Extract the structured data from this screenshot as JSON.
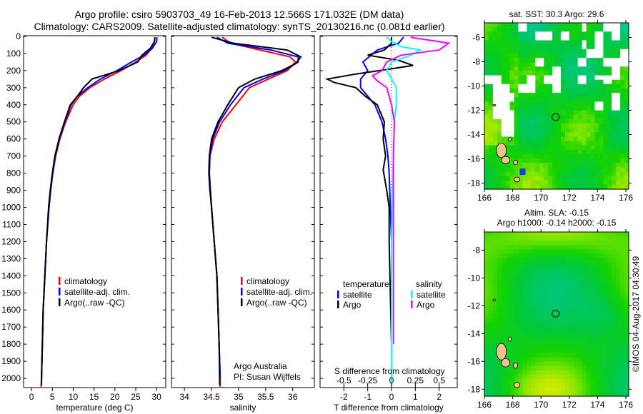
{
  "header": {
    "line1": "Argo profile: csiro 5903703_49 16-Feb-2013 12.566S 171.032E (DM data)",
    "line2": "Climatology: CARS2009. Satellite-adjusted climatology: synTS_20130216.nc (0.081d earlier)"
  },
  "colors": {
    "climatology": "#ff0000",
    "satellite": "#0000ff",
    "argo": "#000000",
    "sal_satellite": "#00ffff",
    "sal_argo": "#ff00ff"
  },
  "chart_data": [
    {
      "type": "line",
      "id": "temperature",
      "xlabel": "temperature (deg C)",
      "ylabel": "",
      "xlim": [
        -1.9,
        32.2
      ],
      "ylim": [
        -4,
        2054
      ],
      "y_inverted": true,
      "xticks": [
        0,
        5,
        10,
        15,
        20,
        25,
        30
      ],
      "xticklabels": [
        "0",
        "5",
        "10",
        "15",
        "20",
        "25",
        "30"
      ],
      "yticks": [
        0,
        100,
        200,
        300,
        400,
        500,
        600,
        700,
        800,
        900,
        1000,
        1100,
        1200,
        1300,
        1400,
        1500,
        1600,
        1700,
        1800,
        1900,
        2000
      ],
      "yticklabels": [
        "0",
        "100",
        "200",
        "300",
        "400",
        "500",
        "600",
        "700",
        "800",
        "900",
        "1000",
        "1100",
        "1200",
        "1300",
        "1400",
        "1500",
        "1600",
        "1700",
        "1800",
        "1900",
        "2000"
      ],
      "legend": [
        "climatology",
        "satellite-adj. clim.",
        "Argo(..raw -QC)"
      ],
      "series": [
        {
          "name": "climatology",
          "color": "#ff0000",
          "points": [
            [
              29.6,
              5
            ],
            [
              29.5,
              30
            ],
            [
              28.8,
              70
            ],
            [
              27.5,
              110
            ],
            [
              25,
              150
            ],
            [
              21.5,
              200
            ],
            [
              17.5,
              250
            ],
            [
              14,
              300
            ],
            [
              11.5,
              350
            ],
            [
              10,
              400
            ],
            [
              8.2,
              500
            ],
            [
              6.8,
              600
            ],
            [
              5.8,
              700
            ],
            [
              5.1,
              800
            ],
            [
              4.6,
              900
            ],
            [
              4.2,
              1000
            ],
            [
              3.6,
              1200
            ],
            [
              3.2,
              1400
            ],
            [
              2.8,
              1600
            ],
            [
              2.6,
              1800
            ],
            [
              2.4,
              2000
            ],
            [
              2.3,
              2050
            ]
          ]
        },
        {
          "name": "satellite-adj. clim.",
          "color": "#0000ff",
          "points": [
            [
              30.1,
              5
            ],
            [
              30,
              30
            ],
            [
              29,
              70
            ],
            [
              27,
              110
            ],
            [
              24,
              150
            ],
            [
              20.5,
              200
            ],
            [
              16.5,
              250
            ],
            [
              13.5,
              300
            ],
            [
              11,
              350
            ],
            [
              9.5,
              400
            ],
            [
              8,
              500
            ],
            [
              6.7,
              600
            ],
            [
              5.7,
              700
            ],
            [
              5.1,
              800
            ],
            [
              4.6,
              900
            ],
            [
              4.2,
              1000
            ],
            [
              3.6,
              1200
            ],
            [
              3.2,
              1400
            ],
            [
              2.8,
              1600
            ],
            [
              2.6,
              1800
            ],
            [
              2.4,
              2000
            ]
          ]
        },
        {
          "name": "Argo(..raw -QC)",
          "color": "#000000",
          "points": [
            [
              29.6,
              5
            ],
            [
              29.5,
              30
            ],
            [
              28.5,
              70
            ],
            [
              26.5,
              110
            ],
            [
              25.5,
              150
            ],
            [
              21,
              200
            ],
            [
              14.5,
              250
            ],
            [
              12.5,
              300
            ],
            [
              11,
              350
            ],
            [
              9.3,
              400
            ],
            [
              7.9,
              500
            ],
            [
              6.6,
              600
            ],
            [
              5.6,
              700
            ],
            [
              5,
              800
            ],
            [
              4.5,
              900
            ],
            [
              4.1,
              1000
            ],
            [
              3.6,
              1200
            ],
            [
              3.2,
              1400
            ],
            [
              2.8,
              1600
            ],
            [
              2.6,
              1800
            ],
            [
              2.4,
              2000
            ],
            [
              2.4,
              2040
            ]
          ]
        }
      ]
    },
    {
      "type": "line",
      "id": "salinity",
      "xlabel": "salinity",
      "xlim": [
        33.76,
        36.4
      ],
      "ylim": [
        -4,
        2054
      ],
      "y_inverted": true,
      "xticks": [
        34,
        34.5,
        35,
        35.5,
        36
      ],
      "xticklabels": [
        "34",
        "34.5",
        "35",
        "35.5",
        "36"
      ],
      "legend": [
        "climatology",
        "satellite-adj. clim.",
        "Argo(..raw -QC)"
      ],
      "annotation": [
        "Argo Australia",
        "PI: Susan Wijffels"
      ],
      "series": [
        {
          "name": "climatology",
          "color": "#ff0000",
          "points": [
            [
              34.7,
              5
            ],
            [
              34.85,
              40
            ],
            [
              35.4,
              80
            ],
            [
              35.95,
              120
            ],
            [
              36.05,
              150
            ],
            [
              35.9,
              200
            ],
            [
              35.55,
              250
            ],
            [
              35.2,
              300
            ],
            [
              34.95,
              400
            ],
            [
              34.7,
              500
            ],
            [
              34.55,
              600
            ],
            [
              34.47,
              700
            ],
            [
              34.46,
              800
            ],
            [
              34.48,
              900
            ],
            [
              34.5,
              1000
            ],
            [
              34.55,
              1200
            ],
            [
              34.6,
              1400
            ],
            [
              34.62,
              1600
            ],
            [
              34.64,
              1800
            ],
            [
              34.66,
              2000
            ],
            [
              34.66,
              2050
            ]
          ]
        },
        {
          "name": "satellite-adj. clim.",
          "color": "#0000ff",
          "points": [
            [
              34.6,
              5
            ],
            [
              34.8,
              40
            ],
            [
              35.6,
              80
            ],
            [
              36.1,
              120
            ],
            [
              36.1,
              150
            ],
            [
              35.85,
              200
            ],
            [
              35.45,
              250
            ],
            [
              35.1,
              300
            ],
            [
              34.85,
              400
            ],
            [
              34.65,
              500
            ],
            [
              34.52,
              600
            ],
            [
              34.47,
              700
            ],
            [
              34.46,
              800
            ],
            [
              34.48,
              900
            ],
            [
              34.5,
              1000
            ],
            [
              34.55,
              1200
            ],
            [
              34.6,
              1400
            ],
            [
              34.62,
              1600
            ],
            [
              34.64,
              1800
            ],
            [
              34.66,
              2000
            ]
          ]
        },
        {
          "name": "Argo(..raw -QC)",
          "color": "#000000",
          "points": [
            [
              34.5,
              5
            ],
            [
              34.9,
              40
            ],
            [
              35.9,
              80
            ],
            [
              36.15,
              120
            ],
            [
              36.05,
              160
            ],
            [
              35.8,
              200
            ],
            [
              35.3,
              250
            ],
            [
              35.0,
              300
            ],
            [
              34.8,
              400
            ],
            [
              34.62,
              500
            ],
            [
              34.5,
              600
            ],
            [
              34.46,
              700
            ],
            [
              34.45,
              800
            ],
            [
              34.47,
              900
            ],
            [
              34.5,
              1000
            ],
            [
              34.55,
              1200
            ],
            [
              34.6,
              1400
            ],
            [
              34.62,
              1600
            ],
            [
              34.64,
              1800
            ],
            [
              34.65,
              2000
            ],
            [
              34.65,
              2040
            ]
          ]
        }
      ]
    },
    {
      "type": "line",
      "id": "difference",
      "xlabel": "T difference from climatology",
      "x2label": "S difference from climatology",
      "xlim": [
        -3.0,
        2.76
      ],
      "x2lim": [
        -0.75,
        0.69
      ],
      "ylim": [
        -4,
        2054
      ],
      "y_inverted": true,
      "xticks": [
        -2,
        -1,
        0,
        1,
        2
      ],
      "xticklabels": [
        "-2",
        "-1",
        "0",
        "1",
        "2"
      ],
      "x2ticks": [
        -0.5,
        -0.25,
        0,
        0.25,
        0.5
      ],
      "x2ticklabels": [
        "-0.5",
        "-0.25",
        "0",
        "0.25",
        "0.5"
      ],
      "legend_temperature": {
        "title": "temperature",
        "items": [
          "satellite",
          "Argo"
        ]
      },
      "legend_salinity": {
        "title": "salinity",
        "items": [
          "satellite",
          "Argo"
        ]
      },
      "series": [
        {
          "name": "temperature satellite",
          "axis": "T",
          "color": "#0000ff",
          "points": [
            [
              0.5,
              5
            ],
            [
              0.3,
              40
            ],
            [
              -0.6,
              80
            ],
            [
              -1.2,
              150
            ],
            [
              -1.0,
              200
            ],
            [
              -1.3,
              250
            ],
            [
              -1.3,
              300
            ],
            [
              -1.0,
              350
            ],
            [
              -0.7,
              400
            ],
            [
              -0.4,
              500
            ],
            [
              -0.25,
              600
            ],
            [
              -0.15,
              700
            ],
            [
              -0.1,
              800
            ],
            [
              -0.05,
              1000
            ],
            [
              0,
              1200
            ],
            [
              0,
              1500
            ],
            [
              0,
              2000
            ]
          ]
        },
        {
          "name": "temperature Argo",
          "axis": "T",
          "color": "#000000",
          "points": [
            [
              0,
              5
            ],
            [
              0,
              40
            ],
            [
              -0.3,
              80
            ],
            [
              -1.0,
              110
            ],
            [
              0.3,
              140
            ],
            [
              0.9,
              170
            ],
            [
              -0.5,
              200
            ],
            [
              -1.5,
              220
            ],
            [
              -2.7,
              250
            ],
            [
              -2.4,
              270
            ],
            [
              -1.5,
              300
            ],
            [
              -1.1,
              350
            ],
            [
              -0.6,
              400
            ],
            [
              -0.3,
              500
            ],
            [
              -0.35,
              600
            ],
            [
              -0.25,
              700
            ],
            [
              -0.35,
              780
            ],
            [
              -0.2,
              900
            ],
            [
              -0.1,
              1000
            ],
            [
              -0.1,
              1200
            ],
            [
              -0.05,
              1500
            ],
            [
              0,
              1800
            ],
            [
              0,
              2040
            ]
          ]
        },
        {
          "name": "salinity satellite",
          "axis": "S",
          "color": "#00ffff",
          "points": [
            [
              -0.05,
              5
            ],
            [
              0,
              30
            ],
            [
              0.1,
              60
            ],
            [
              0.3,
              80
            ],
            [
              0.2,
              110
            ],
            [
              0,
              150
            ],
            [
              -0.05,
              200
            ],
            [
              0,
              250
            ],
            [
              0.05,
              300
            ],
            [
              0.05,
              400
            ],
            [
              0.03,
              500
            ],
            [
              0.02,
              700
            ],
            [
              0.01,
              900
            ],
            [
              0,
              1200
            ],
            [
              0,
              1600
            ],
            [
              0,
              2040
            ]
          ]
        },
        {
          "name": "salinity Argo",
          "axis": "S",
          "color": "#ff00ff",
          "points": [
            [
              0.2,
              5
            ],
            [
              0.6,
              40
            ],
            [
              0.5,
              80
            ],
            [
              0.1,
              110
            ],
            [
              -0.05,
              150
            ],
            [
              -0.1,
              200
            ],
            [
              -0.2,
              230
            ],
            [
              -0.15,
              260
            ],
            [
              -0.05,
              300
            ],
            [
              0,
              400
            ],
            [
              0.03,
              500
            ],
            [
              0.02,
              700
            ],
            [
              0.02,
              1000
            ],
            [
              0.02,
              1500
            ],
            [
              0.02,
              1800
            ]
          ]
        }
      ]
    },
    {
      "type": "heatmap",
      "id": "sst-map",
      "title": "sat. SST: 30.3 Argo: 29.6",
      "xlim": [
        166,
        176.2
      ],
      "ylim": [
        -18.5,
        -4.8
      ],
      "xticks": [
        166,
        168,
        170,
        172,
        174,
        176
      ],
      "xticklabels": [
        "166",
        "168",
        "170",
        "172",
        "174",
        "176"
      ],
      "yticks": [
        -6,
        -8,
        -10,
        -12,
        -14,
        -16,
        -18
      ],
      "yticklabels": [
        "-6",
        "-8",
        "-10",
        "-12",
        "-14",
        "-16",
        "-18"
      ],
      "marker": [
        171.032,
        -12.566
      ]
    },
    {
      "type": "heatmap",
      "id": "sla-map",
      "title": "Altim. SLA: -0.15",
      "subtitle": "Argo h1000: -0.14 h2000: -0.15",
      "xlim": [
        166,
        176.2
      ],
      "ylim": [
        -18.5,
        -6.7
      ],
      "xticks": [
        166,
        168,
        170,
        172,
        174,
        176
      ],
      "xticklabels": [
        "166",
        "168",
        "170",
        "172",
        "174",
        "176"
      ],
      "yticks": [
        -8,
        -10,
        -12,
        -14,
        -16,
        -18
      ],
      "yticklabels": [
        "-8",
        "-10",
        "-12",
        "-14",
        "-16",
        "-18"
      ],
      "marker": [
        171.032,
        -12.566
      ]
    }
  ],
  "footer": {
    "credit": "©IMOS 04-Aug-2017 04:30:49"
  }
}
